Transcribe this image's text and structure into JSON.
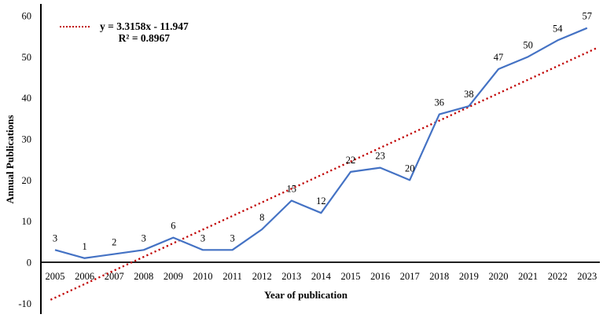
{
  "chart_data": {
    "type": "line",
    "title": "",
    "xlabel": "Year of publication",
    "ylabel": "Annual Publications",
    "categories": [
      "2005",
      "2006",
      "2007",
      "2008",
      "2009",
      "2010",
      "2011",
      "2012",
      "2013",
      "2014",
      "2015",
      "2016",
      "2017",
      "2018",
      "2019",
      "2020",
      "2021",
      "2022",
      "2023"
    ],
    "series": [
      {
        "name": "Annual Publications",
        "values": [
          3,
          1,
          2,
          3,
          6,
          3,
          3,
          8,
          15,
          12,
          22,
          23,
          20,
          36,
          38,
          47,
          50,
          54,
          57
        ],
        "color": "#4472C4"
      }
    ],
    "data_labels_shown": true,
    "yticks": [
      -10,
      0,
      10,
      20,
      30,
      40,
      50,
      60
    ],
    "ylim": [
      -10,
      60
    ],
    "grid": false,
    "legend_position": "top-left-inside",
    "trendline": {
      "equation": "y = 3.3158x - 11.947",
      "r_squared": "R² = 0.8967",
      "slope": 3.3158,
      "intercept": -11.947,
      "color": "#C00000",
      "style": "dotted"
    },
    "axis_color": "#000000"
  }
}
